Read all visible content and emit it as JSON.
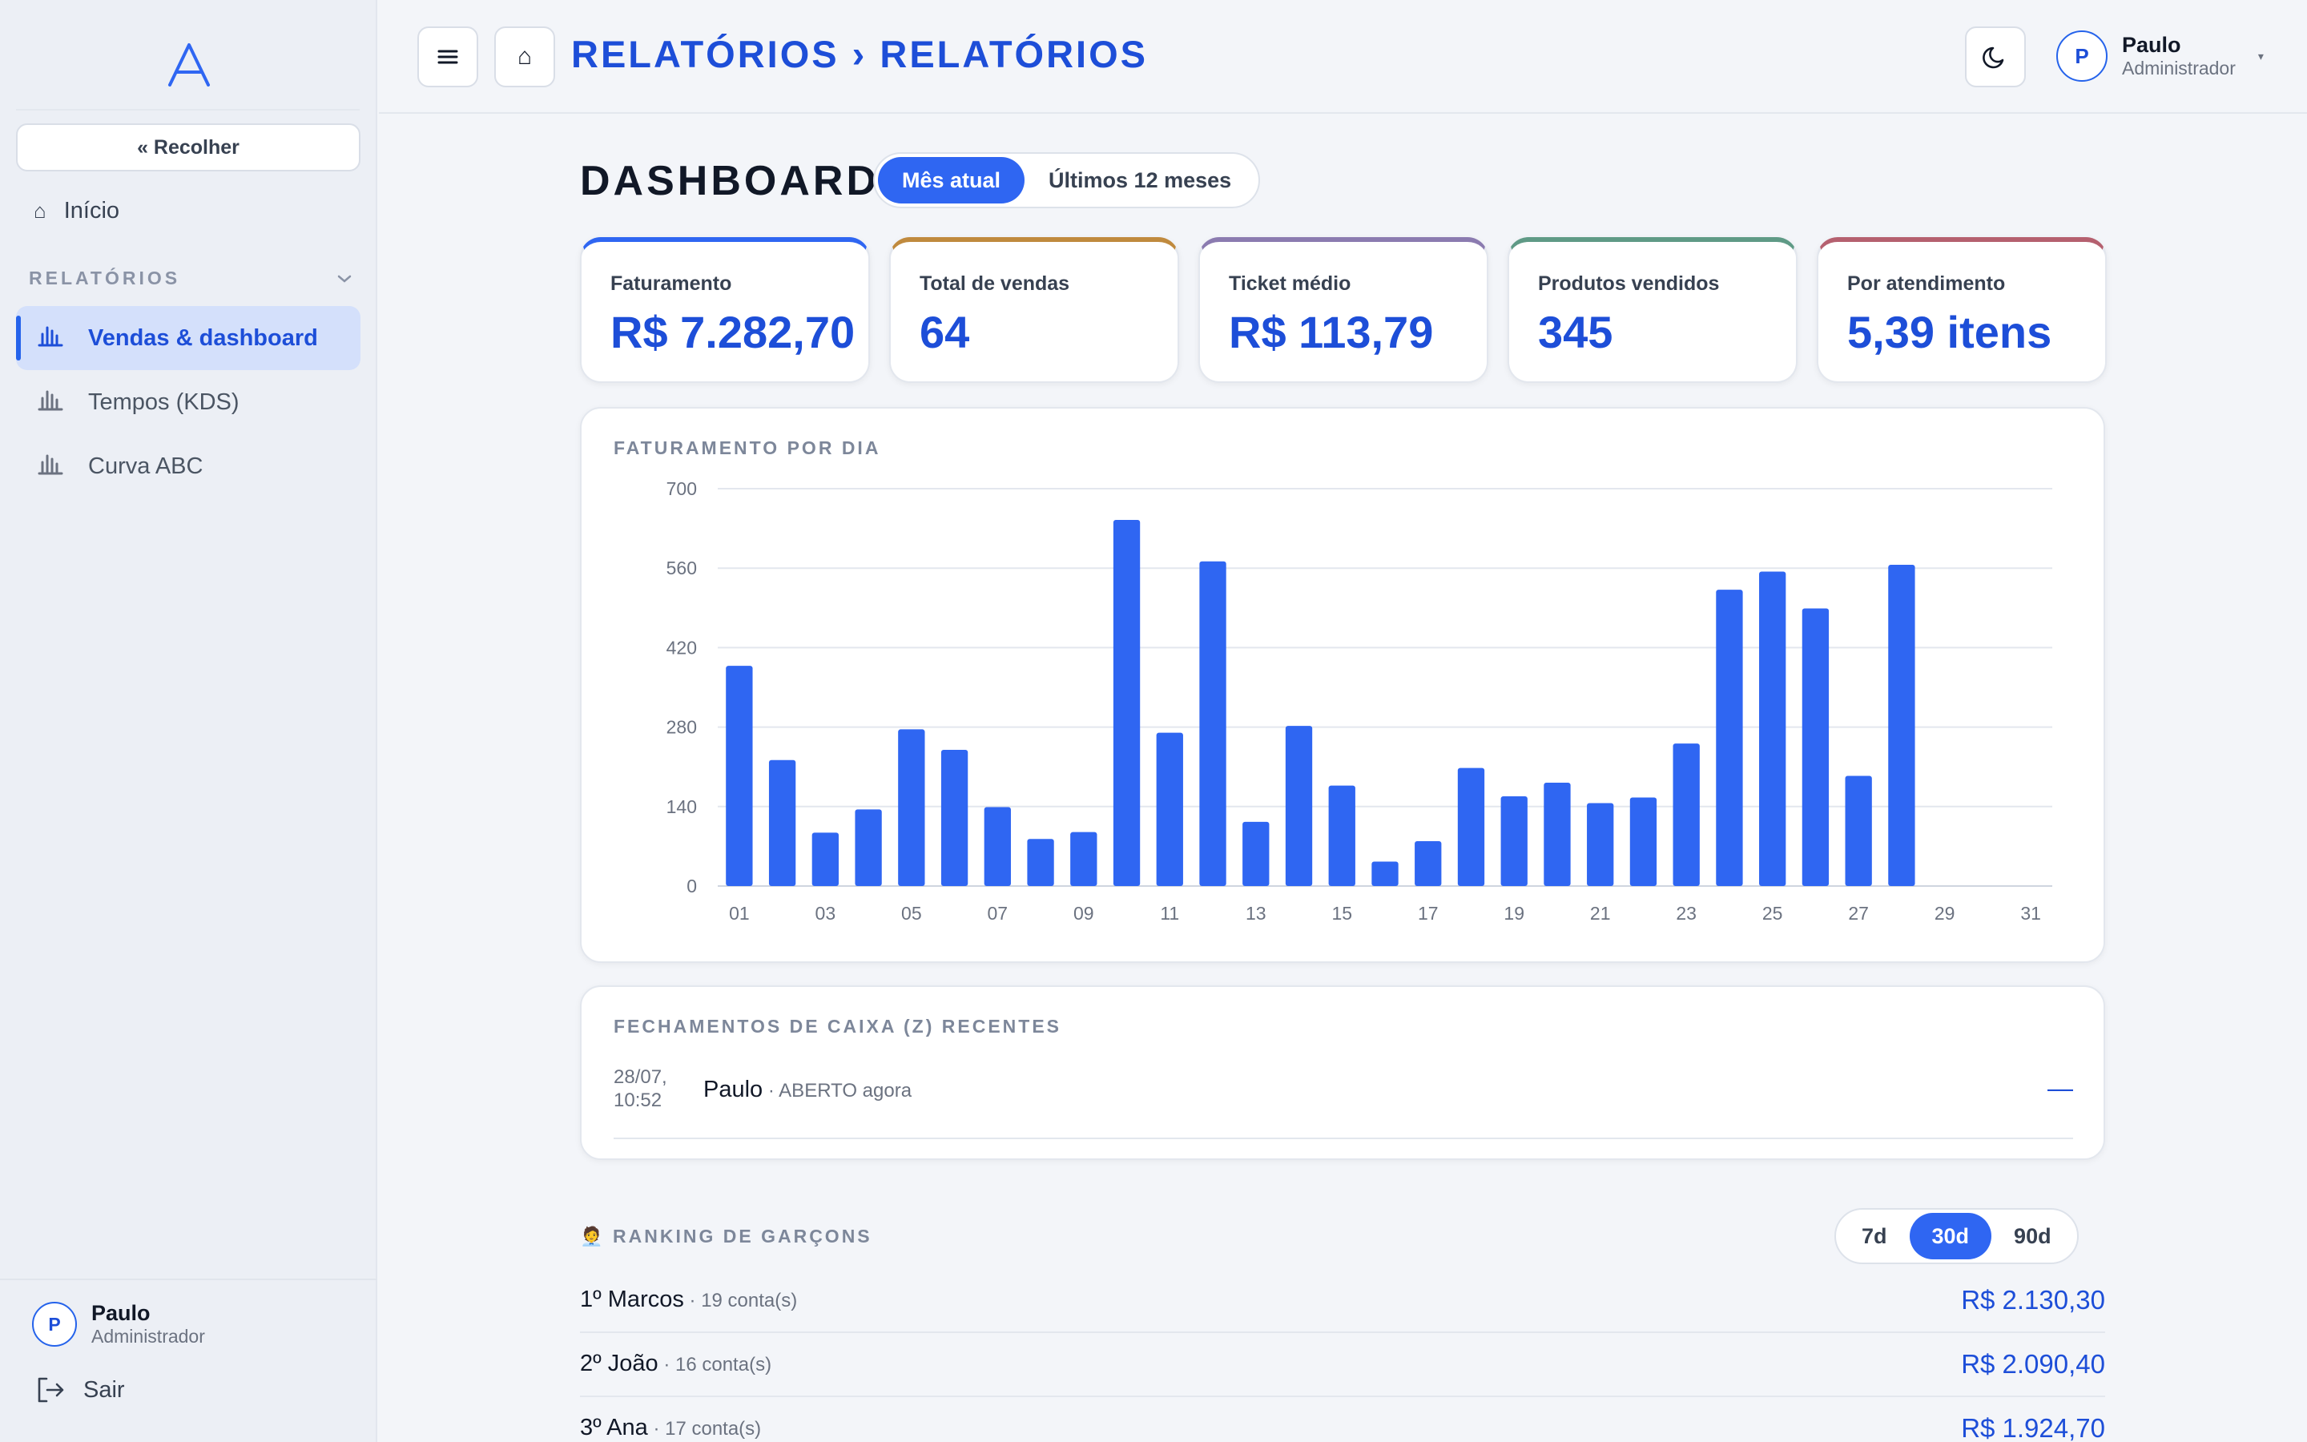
{
  "sidebar": {
    "collapse_label": "« Recolher",
    "home_label": "Início",
    "section_label": "RELATÓRIOS",
    "items": [
      {
        "label": "Vendas & dashboard",
        "active": true
      },
      {
        "label": "Tempos (KDS)",
        "active": false
      },
      {
        "label": "Curva ABC",
        "active": false
      }
    ],
    "user": {
      "initial": "P",
      "name": "Paulo",
      "role": "Administrador"
    },
    "logout_label": "Sair"
  },
  "header": {
    "menu_icon": "≡",
    "home_icon": "⌂",
    "breadcrumb": "RELATÓRIOS › RELATÓRIOS",
    "user": {
      "initial": "P",
      "name": "Paulo",
      "role": "Administrador"
    }
  },
  "dashboard": {
    "title": "DASHBOARD",
    "period_options": [
      "Mês atual",
      "Últimos 12 meses"
    ],
    "selected_period": "Mês atual"
  },
  "kpis": [
    {
      "label": "Faturamento",
      "value": "R$ 7.282,70",
      "accent": "#2f66f2"
    },
    {
      "label": "Total de vendas",
      "value": "64",
      "accent": "#c08a3e"
    },
    {
      "label": "Ticket médio",
      "value": "R$ 113,79",
      "accent": "#8b7bb0"
    },
    {
      "label": "Produtos vendidos",
      "value": "345",
      "accent": "#5f9a86"
    },
    {
      "label": "Por atendimento",
      "value": "5,39 itens",
      "accent": "#b5606f"
    }
  ],
  "chart_data": {
    "type": "bar",
    "title": "FATURAMENTO POR DIA",
    "categories": [
      "01",
      "02",
      "03",
      "04",
      "05",
      "06",
      "07",
      "08",
      "09",
      "10",
      "11",
      "12",
      "13",
      "14",
      "15",
      "16",
      "17",
      "18",
      "19",
      "20",
      "21",
      "22",
      "23",
      "24",
      "25",
      "26",
      "27",
      "28",
      "29",
      "30",
      "31"
    ],
    "tick_labels": [
      "01",
      "03",
      "05",
      "07",
      "09",
      "11",
      "13",
      "15",
      "17",
      "19",
      "21",
      "23",
      "25",
      "27",
      "29",
      "31"
    ],
    "values": [
      388,
      222,
      94,
      135,
      276,
      240,
      139,
      83,
      95,
      645,
      270,
      572,
      113,
      282,
      177,
      43,
      79,
      208,
      158,
      182,
      146,
      156,
      251,
      522,
      554,
      489,
      194,
      566,
      0,
      0,
      0
    ],
    "yticks": [
      0,
      140,
      280,
      420,
      560,
      700
    ],
    "ylim": [
      0,
      700
    ],
    "bar_color": "#2f66f2",
    "grid": true
  },
  "closings": {
    "title": "FECHAMENTOS DE CAIXA (Z) RECENTES",
    "rows": [
      {
        "date": "28/07,",
        "time": "10:52",
        "user": "Paulo",
        "status": " · ABERTO agora",
        "value": "—"
      }
    ]
  },
  "ranking": {
    "title": "RANKING DE GARÇONS",
    "icon": "🧑‍💼",
    "periods": [
      "7d",
      "30d",
      "90d"
    ],
    "selected": "30d",
    "rows": [
      {
        "name": "1º Marcos",
        "sub": " · 19 conta(s)",
        "value": "R$ 2.130,30"
      },
      {
        "name": "2º João",
        "sub": " · 16 conta(s)",
        "value": "R$ 2.090,40"
      },
      {
        "name": "3º Ana",
        "sub": " · 17 conta(s)",
        "value": "R$ 1.924,70"
      }
    ]
  }
}
